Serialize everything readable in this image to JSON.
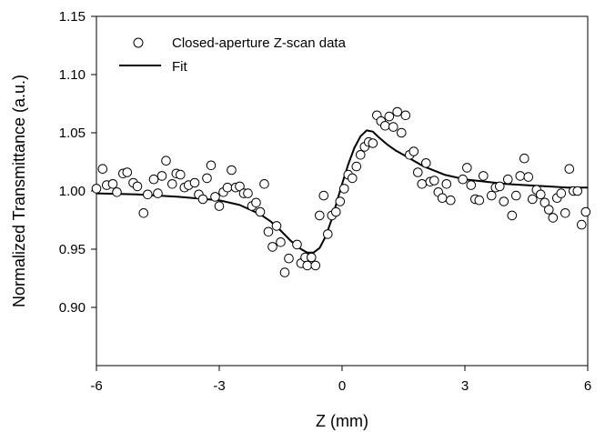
{
  "chart_data": {
    "type": "scatter",
    "title": "",
    "xlabel": "Z (mm)",
    "ylabel": "Normalized Transmittance (a.u.)",
    "xlim": [
      -6,
      6
    ],
    "ylim": [
      0.85,
      1.15
    ],
    "xticks": [
      -6,
      -3,
      0,
      3,
      6
    ],
    "yticks": [
      0.9,
      0.95,
      1.0,
      1.05,
      1.1,
      1.15
    ],
    "ytick_labels": [
      "0.90",
      "0.95",
      "1.00",
      "1.05",
      "1.10",
      "1.15"
    ],
    "grid": false,
    "legend_position": "top-left",
    "series": [
      {
        "name": "Closed-aperture Z-scan data",
        "marker": "open-circle",
        "points": [
          [
            -6.0,
            1.002
          ],
          [
            -5.85,
            1.019
          ],
          [
            -5.75,
            1.005
          ],
          [
            -5.6,
            1.006
          ],
          [
            -5.5,
            0.999
          ],
          [
            -5.35,
            1.015
          ],
          [
            -5.25,
            1.016
          ],
          [
            -5.1,
            1.007
          ],
          [
            -5.0,
            1.004
          ],
          [
            -4.85,
            0.981
          ],
          [
            -4.75,
            0.997
          ],
          [
            -4.6,
            1.01
          ],
          [
            -4.5,
            0.998
          ],
          [
            -4.4,
            1.013
          ],
          [
            -4.3,
            1.026
          ],
          [
            -4.15,
            1.006
          ],
          [
            -4.05,
            1.015
          ],
          [
            -3.95,
            1.014
          ],
          [
            -3.85,
            1.003
          ],
          [
            -3.75,
            1.005
          ],
          [
            -3.6,
            1.007
          ],
          [
            -3.5,
            0.997
          ],
          [
            -3.4,
            0.993
          ],
          [
            -3.3,
            1.011
          ],
          [
            -3.2,
            1.022
          ],
          [
            -3.1,
            0.995
          ],
          [
            -3.0,
            0.987
          ],
          [
            -2.9,
            0.999
          ],
          [
            -2.8,
            1.003
          ],
          [
            -2.7,
            1.018
          ],
          [
            -2.6,
            1.003
          ],
          [
            -2.5,
            1.004
          ],
          [
            -2.4,
            0.998
          ],
          [
            -2.3,
            0.998
          ],
          [
            -2.2,
            0.987
          ],
          [
            -2.1,
            0.99
          ],
          [
            -2.0,
            0.982
          ],
          [
            -1.9,
            1.006
          ],
          [
            -1.8,
            0.965
          ],
          [
            -1.7,
            0.952
          ],
          [
            -1.6,
            0.97
          ],
          [
            -1.5,
            0.956
          ],
          [
            -1.4,
            0.93
          ],
          [
            -1.3,
            0.942
          ],
          [
            -1.1,
            0.954
          ],
          [
            -1.0,
            0.938
          ],
          [
            -0.9,
            0.943
          ],
          [
            -0.85,
            0.936
          ],
          [
            -0.75,
            0.943
          ],
          [
            -0.65,
            0.936
          ],
          [
            -0.55,
            0.979
          ],
          [
            -0.45,
            0.996
          ],
          [
            -0.35,
            0.963
          ],
          [
            -0.25,
            0.979
          ],
          [
            -0.15,
            0.982
          ],
          [
            -0.05,
            0.991
          ],
          [
            0.05,
            1.002
          ],
          [
            0.15,
            1.014
          ],
          [
            0.25,
            1.011
          ],
          [
            0.35,
            1.021
          ],
          [
            0.45,
            1.031
          ],
          [
            0.55,
            1.038
          ],
          [
            0.65,
            1.042
          ],
          [
            0.75,
            1.041
          ],
          [
            0.85,
            1.065
          ],
          [
            0.95,
            1.06
          ],
          [
            1.05,
            1.056
          ],
          [
            1.15,
            1.064
          ],
          [
            1.25,
            1.055
          ],
          [
            1.35,
            1.068
          ],
          [
            1.45,
            1.05
          ],
          [
            1.55,
            1.065
          ],
          [
            1.65,
            1.031
          ],
          [
            1.75,
            1.034
          ],
          [
            1.85,
            1.016
          ],
          [
            1.95,
            1.006
          ],
          [
            2.05,
            1.024
          ],
          [
            2.15,
            1.008
          ],
          [
            2.25,
            1.009
          ],
          [
            2.35,
            0.999
          ],
          [
            2.45,
            0.994
          ],
          [
            2.55,
            1.006
          ],
          [
            2.65,
            0.992
          ],
          [
            2.95,
            1.01
          ],
          [
            3.05,
            1.02
          ],
          [
            3.15,
            1.005
          ],
          [
            3.25,
            0.993
          ],
          [
            3.35,
            0.992
          ],
          [
            3.45,
            1.013
          ],
          [
            3.65,
            0.996
          ],
          [
            3.75,
            1.003
          ],
          [
            3.85,
            1.004
          ],
          [
            3.95,
            0.991
          ],
          [
            4.05,
            1.01
          ],
          [
            4.15,
            0.979
          ],
          [
            4.25,
            0.996
          ],
          [
            4.35,
            1.013
          ],
          [
            4.45,
            1.028
          ],
          [
            4.55,
            1.012
          ],
          [
            4.65,
            0.993
          ],
          [
            4.75,
            1.001
          ],
          [
            4.85,
            0.997
          ],
          [
            4.95,
            0.99
          ],
          [
            5.05,
            0.984
          ],
          [
            5.15,
            0.977
          ],
          [
            5.25,
            0.994
          ],
          [
            5.35,
            0.998
          ],
          [
            5.45,
            0.981
          ],
          [
            5.55,
            1.019
          ],
          [
            5.65,
            1.0
          ],
          [
            5.75,
            1.0
          ],
          [
            5.85,
            0.971
          ],
          [
            5.95,
            0.982
          ]
        ]
      },
      {
        "name": "Fit",
        "line": "solid",
        "points": [
          [
            -6.0,
            0.998
          ],
          [
            -5.0,
            0.997
          ],
          [
            -4.0,
            0.995
          ],
          [
            -3.0,
            0.992
          ],
          [
            -2.5,
            0.988
          ],
          [
            -2.0,
            0.98
          ],
          [
            -1.75,
            0.974
          ],
          [
            -1.5,
            0.966
          ],
          [
            -1.25,
            0.957
          ],
          [
            -1.0,
            0.95
          ],
          [
            -0.85,
            0.947
          ],
          [
            -0.7,
            0.947
          ],
          [
            -0.55,
            0.951
          ],
          [
            -0.4,
            0.961
          ],
          [
            -0.25,
            0.976
          ],
          [
            -0.1,
            0.994
          ],
          [
            0.0,
            1.006
          ],
          [
            0.15,
            1.023
          ],
          [
            0.3,
            1.037
          ],
          [
            0.45,
            1.047
          ],
          [
            0.6,
            1.052
          ],
          [
            0.75,
            1.051
          ],
          [
            0.9,
            1.046
          ],
          [
            1.1,
            1.04
          ],
          [
            1.3,
            1.035
          ],
          [
            1.5,
            1.031
          ],
          [
            1.75,
            1.026
          ],
          [
            2.0,
            1.021
          ],
          [
            2.5,
            1.014
          ],
          [
            3.0,
            1.01
          ],
          [
            3.5,
            1.008
          ],
          [
            4.0,
            1.006
          ],
          [
            4.5,
            1.005
          ],
          [
            5.0,
            1.004
          ],
          [
            5.5,
            1.003
          ],
          [
            6.0,
            1.003
          ]
        ]
      }
    ]
  }
}
